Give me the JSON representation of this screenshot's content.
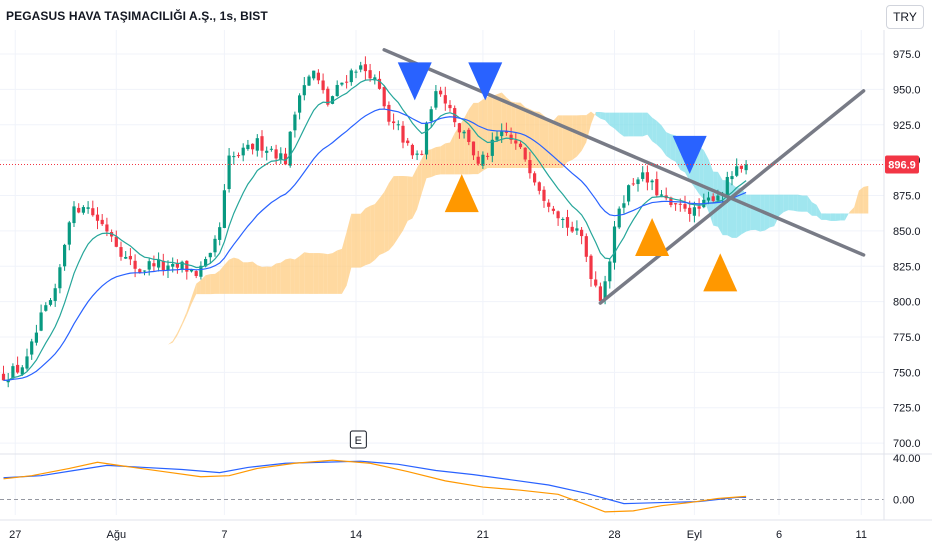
{
  "chart": {
    "title": "PEGASUS HAVA TAŞIMACILIĞI A.Ş., 1s, BIST",
    "currency_label": "TRY",
    "last_price_label": "896.9",
    "event_marker_label": "E"
  },
  "colors": {
    "up": "#089981",
    "down": "#f23645",
    "ma_fast": "#26a69a",
    "ma_slow": "#2962ff",
    "cloud_bull": "#ffcc80",
    "cloud_bear": "#80deea",
    "trendline": "#787b86",
    "signal_buy": "#ff9800",
    "signal_sell": "#2962ff",
    "macd": "#2962ff",
    "macd_signal": "#ff9800",
    "price_tag": "#f23645"
  },
  "chart_data": [
    {
      "type": "candlestick",
      "title": "",
      "y_ticks": [
        975,
        950,
        925,
        900,
        875,
        850,
        825,
        800,
        775,
        750,
        725,
        700
      ],
      "y_tick_labels": [
        "975.0",
        "950.0",
        "925.0",
        "900.0",
        "875.0",
        "850.0",
        "825.0",
        "800.0",
        "775.0",
        "750.0",
        "725.0",
        "700.0"
      ],
      "ylim": [
        693,
        992
      ],
      "x_ticks": [
        {
          "label": "27",
          "t": 2.5
        },
        {
          "label": "Ağu",
          "t": 24
        },
        {
          "label": "7",
          "t": 47
        },
        {
          "label": "14",
          "t": 75
        },
        {
          "label": "21",
          "t": 102
        },
        {
          "label": "28",
          "t": 130
        },
        {
          "label": "Eyl",
          "t": 147
        },
        {
          "label": "6",
          "t": 165
        },
        {
          "label": "11",
          "t": 182.5
        }
      ],
      "price_anchors": [
        [
          0,
          748
        ],
        [
          3,
          752
        ],
        [
          5,
          758
        ],
        [
          8,
          788
        ],
        [
          11,
          805
        ],
        [
          14,
          860
        ],
        [
          17,
          870
        ],
        [
          20,
          858
        ],
        [
          23,
          848
        ],
        [
          26,
          830
        ],
        [
          29,
          822
        ],
        [
          32,
          828
        ],
        [
          35,
          822
        ],
        [
          38,
          825
        ],
        [
          41,
          820
        ],
        [
          44,
          830
        ],
        [
          46,
          852
        ],
        [
          48,
          900
        ],
        [
          51,
          905
        ],
        [
          54,
          912
        ],
        [
          57,
          908
        ],
        [
          60,
          900
        ],
        [
          63,
          950
        ],
        [
          66,
          962
        ],
        [
          69,
          940
        ],
        [
          72,
          955
        ],
        [
          75,
          966
        ],
        [
          78,
          962
        ],
        [
          80,
          948
        ],
        [
          82,
          925
        ],
        [
          84,
          922
        ],
        [
          87,
          902
        ],
        [
          89,
          905
        ],
        [
          91,
          940
        ],
        [
          93,
          950
        ],
        [
          95,
          937
        ],
        [
          97,
          922
        ],
        [
          99,
          915
        ],
        [
          101,
          895
        ],
        [
          103,
          905
        ],
        [
          105,
          915
        ],
        [
          107,
          918
        ],
        [
          109,
          910
        ],
        [
          111,
          902
        ],
        [
          113,
          888
        ],
        [
          115,
          875
        ],
        [
          117,
          868
        ],
        [
          119,
          858
        ],
        [
          121,
          850
        ],
        [
          123,
          845
        ],
        [
          125,
          820
        ],
        [
          126,
          812
        ],
        [
          127,
          804
        ],
        [
          129,
          830
        ],
        [
          131,
          868
        ],
        [
          133,
          880
        ],
        [
          135,
          890
        ],
        [
          137,
          885
        ],
        [
          139,
          878
        ],
        [
          141,
          870
        ],
        [
          143,
          865
        ],
        [
          145,
          868
        ],
        [
          147,
          863
        ],
        [
          149,
          868
        ],
        [
          151,
          875
        ],
        [
          153,
          878
        ],
        [
          155,
          890
        ],
        [
          157,
          893
        ],
        [
          158,
          896.9
        ]
      ],
      "overlays": [
        "moving-average-fast",
        "moving-average-slow",
        "ichimoku-cloud",
        "trendlines"
      ],
      "trendlines": [
        {
          "name": "descending-resistance",
          "t1": 81,
          "p1": 978,
          "t2": 183,
          "p2": 833
        },
        {
          "name": "ascending-support",
          "t1": 127,
          "p1": 799,
          "t2": 183,
          "p2": 949
        }
      ],
      "signals": [
        {
          "kind": "sell",
          "t": 87.5,
          "price": 955
        },
        {
          "kind": "sell",
          "t": 102.5,
          "price": 955
        },
        {
          "kind": "buy",
          "t": 97.5,
          "price": 876
        },
        {
          "kind": "sell",
          "t": 146,
          "price": 903
        },
        {
          "kind": "buy",
          "t": 138,
          "price": 845
        },
        {
          "kind": "buy",
          "t": 152.5,
          "price": 820
        }
      ],
      "last_price": 896.9
    },
    {
      "type": "line",
      "title": "",
      "y_ticks": [
        40,
        0
      ],
      "y_tick_labels": [
        "40.00",
        "0.00"
      ],
      "ylim": [
        -15,
        43
      ],
      "series": [
        {
          "key": "macd",
          "points": [
            [
              0,
              21
            ],
            [
              8,
              23
            ],
            [
              15,
              28
            ],
            [
              22,
              33
            ],
            [
              30,
              31
            ],
            [
              38,
              29
            ],
            [
              46,
              26
            ],
            [
              52,
              31
            ],
            [
              60,
              35
            ],
            [
              68,
              36
            ],
            [
              76,
              37
            ],
            [
              84,
              34
            ],
            [
              92,
              28
            ],
            [
              100,
              24
            ],
            [
              108,
              19
            ],
            [
              116,
              14
            ],
            [
              124,
              6
            ],
            [
              132,
              -4
            ],
            [
              140,
              -3
            ],
            [
              148,
              -2
            ],
            [
              156,
              2
            ],
            [
              158,
              2
            ]
          ]
        },
        {
          "key": "macd_signal",
          "points": [
            [
              0,
              20
            ],
            [
              6,
              23
            ],
            [
              14,
              30
            ],
            [
              20,
              36
            ],
            [
              26,
              32
            ],
            [
              34,
              27
            ],
            [
              42,
              22
            ],
            [
              48,
              23
            ],
            [
              54,
              30
            ],
            [
              62,
              35
            ],
            [
              70,
              38
            ],
            [
              78,
              35
            ],
            [
              86,
              27
            ],
            [
              94,
              18
            ],
            [
              102,
              12
            ],
            [
              110,
              9
            ],
            [
              118,
              5
            ],
            [
              124,
              -5
            ],
            [
              128,
              -12
            ],
            [
              134,
              -11
            ],
            [
              140,
              -6
            ],
            [
              146,
              -3
            ],
            [
              152,
              1
            ],
            [
              158,
              3
            ]
          ]
        }
      ]
    }
  ]
}
